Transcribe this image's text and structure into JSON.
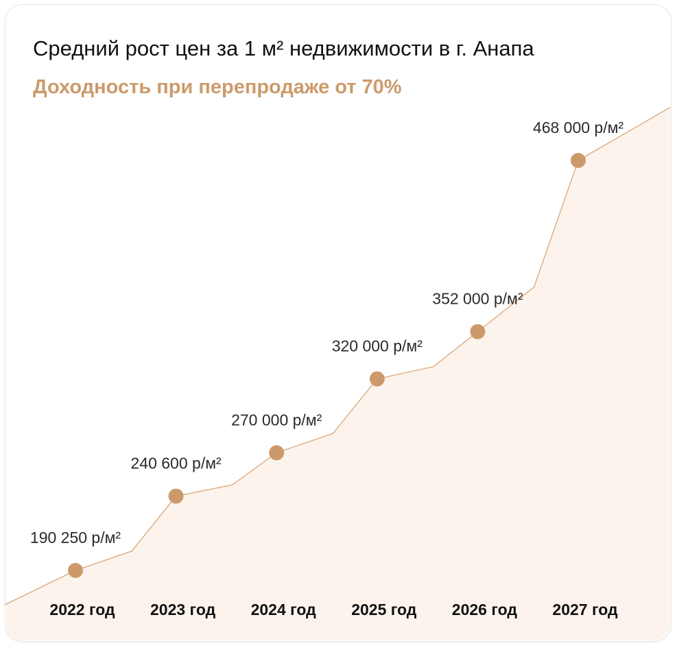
{
  "header": {
    "title": "Средний рост цен за 1 м² недвижимости в г. Анапа",
    "subtitle": "Доходность при перепродаже от 70%"
  },
  "colors": {
    "accent": "#cc9a6a",
    "fill": "#fcf3ec",
    "line": "#d9a777"
  },
  "chart_data": {
    "type": "area",
    "title": "Средний рост цен за 1 м² недвижимости в г. Анапа",
    "subtitle": "Доходность при перепродаже от 70%",
    "categories": [
      "2022 год",
      "2023 год",
      "2024 год",
      "2025 год",
      "2026 год",
      "2027 год"
    ],
    "values": [
      190250,
      240600,
      270000,
      320000,
      352000,
      468000
    ],
    "value_labels": [
      "190 250 р/м²",
      "240 600 р/м²",
      "270 000 р/м²",
      "320 000 р/м²",
      "352 000 р/м²",
      "468 000 р/м²"
    ],
    "unit": "р/м²",
    "grid": false,
    "legend": "none"
  }
}
